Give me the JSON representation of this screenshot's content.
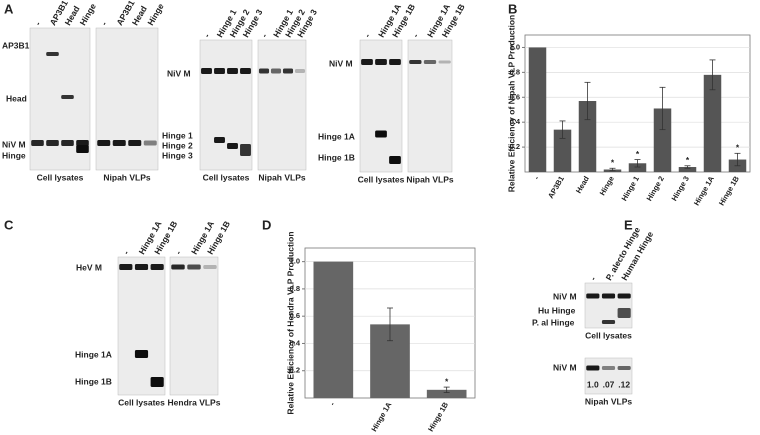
{
  "panels": {
    "a": "A",
    "b": "B",
    "c": "C",
    "d": "D",
    "e": "E"
  },
  "blots": [
    {
      "lanes": [
        "-",
        "AP3B1",
        "Head",
        "Hinge"
      ],
      "side_labels": [
        "AP3B1",
        "Head",
        "NiV M",
        "Hinge"
      ],
      "caption": "Cell lysates"
    },
    {
      "lanes": [
        "-",
        "AP3B1",
        "Head",
        "Hinge"
      ],
      "caption": "Nipah VLPs"
    },
    {
      "lanes": [
        "-",
        "Hinge 1",
        "Hinge 2",
        "Hinge 3"
      ],
      "side_labels": [
        "NiV M",
        "Hinge 1",
        "Hinge 2",
        "Hinge 3"
      ],
      "caption": "Cell lysates"
    },
    {
      "lanes": [
        "-",
        "Hinge 1",
        "Hinge 2",
        "Hinge 3"
      ],
      "caption": "Nipah VLPs"
    },
    {
      "lanes": [
        "-",
        "Hinge 1A",
        "Hinge 1B"
      ],
      "side_labels": [
        "NiV M",
        "Hinge 1A",
        "Hinge 1B"
      ],
      "caption": "Cell lysates"
    },
    {
      "lanes": [
        "-",
        "Hinge 1A",
        "Hinge 1B"
      ],
      "caption": "Nipah VLPs"
    },
    {
      "lanes": [
        "-",
        "Hinge 1A",
        "Hinge 1B"
      ],
      "side_labels": [
        "HeV M",
        "Hinge 1A",
        "Hinge 1B"
      ],
      "caption": "Cell lysates"
    },
    {
      "lanes": [
        "-",
        "Hinge 1A",
        "Hinge 1B"
      ],
      "caption": "Hendra VLPs"
    },
    {
      "lanes": [
        "-",
        "P. alecto Hinge",
        "Human Hinge"
      ],
      "side_labels": [
        "NiV M",
        "Hu Hinge",
        "P. al Hinge"
      ],
      "caption": "Cell lysates"
    },
    {
      "side_labels": [
        "NiV M"
      ],
      "lane_values": [
        "1.0",
        ".07",
        ".12"
      ],
      "caption": "Nipah VLPs"
    }
  ],
  "chart_data": [
    {
      "type": "bar",
      "y_label": "Relative Efficiency of Nipah VLP Production",
      "categories": [
        "-",
        "AP3B1",
        "Head",
        "Hinge",
        "Hinge 1",
        "Hinge 2",
        "Hinge 3",
        "Hinge 1A",
        "Hinge 1B"
      ],
      "values": [
        1.0,
        0.34,
        0.57,
        0.02,
        0.07,
        0.51,
        0.04,
        0.78,
        0.1
      ],
      "errors": [
        null,
        0.07,
        0.15,
        0.01,
        0.03,
        0.17,
        0.01,
        0.12,
        0.05
      ],
      "significance": [
        null,
        null,
        null,
        "*",
        "*",
        null,
        "*",
        null,
        "*"
      ],
      "color": "#555555",
      "ylim": [
        0,
        1.1
      ],
      "yticks": [
        0.2,
        0.4,
        0.6,
        0.8,
        {
          "value": 1,
          "label": "1.0"
        }
      ],
      "grid": true
    },
    {
      "type": "bar",
      "y_label": "Relative Efficiency of Hendra VLP Production",
      "categories": [
        "-",
        "Hinge 1A",
        "Hinge 1B"
      ],
      "values": [
        1.0,
        0.54,
        0.06
      ],
      "errors": [
        null,
        0.12,
        0.02
      ],
      "significance": [
        null,
        null,
        "*"
      ],
      "color": "#666666",
      "ylim": [
        0,
        1.1
      ],
      "yticks": [
        0.2,
        0.4,
        0.6,
        0.8,
        {
          "value": 1,
          "label": "1.0"
        }
      ],
      "grid": true
    }
  ]
}
